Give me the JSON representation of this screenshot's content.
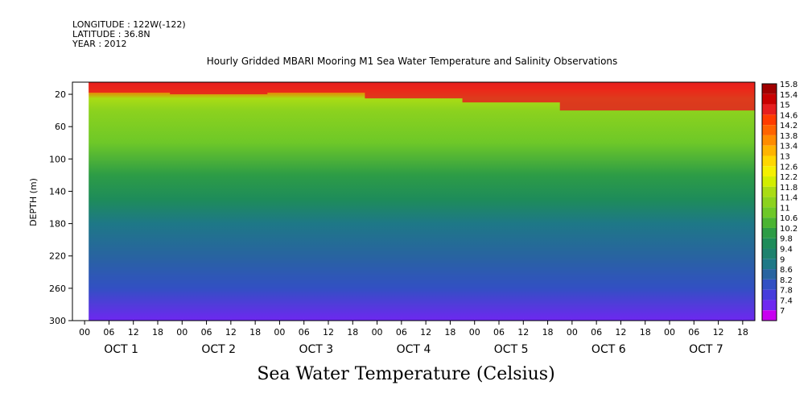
{
  "header": {
    "longitude": "LONGITUDE : 122W(-122)",
    "latitude": "LATITUDE : 36.8N",
    "year": "YEAR : 2012"
  },
  "chart_data": {
    "type": "heatmap",
    "title": "Hourly Gridded MBARI Mooring M1 Sea Water Temperature and Salinity Observations",
    "xlabel": "",
    "ylabel": "DEPTH (m)",
    "variable_title": "Sea Water Temperature (Celsius)",
    "x_hour_ticks": [
      "00",
      "06",
      "12",
      "18",
      "00",
      "06",
      "12",
      "18",
      "00",
      "06",
      "12",
      "18",
      "00",
      "06",
      "12",
      "18",
      "00",
      "06",
      "12",
      "18",
      "00",
      "06",
      "12",
      "18",
      "00",
      "06",
      "12",
      "18"
    ],
    "x_day_labels": [
      "OCT  1",
      "OCT  2",
      "OCT  3",
      "OCT  4",
      "OCT  5",
      "OCT  6",
      "OCT  7"
    ],
    "y_ticks": [
      20,
      60,
      100,
      140,
      180,
      220,
      260,
      300
    ],
    "ylim": [
      300,
      5
    ],
    "xlim_hours": [
      0,
      168
    ],
    "data_start_hour": 4,
    "colorbar_labels": [
      "15.8",
      "15.4",
      "15",
      "14.6",
      "14.2",
      "13.8",
      "13.4",
      "13",
      "12.6",
      "12.2",
      "11.8",
      "11.4",
      "11",
      "10.6",
      "10.2",
      "9.8",
      "9.4",
      "9",
      "8.6",
      "8.2",
      "7.8",
      "7.4",
      "7"
    ],
    "colorbar_colors": [
      "#a00000",
      "#c80000",
      "#e61e1e",
      "#ff3c00",
      "#ff6400",
      "#ff8c00",
      "#ffb400",
      "#ffd700",
      "#f5f000",
      "#d2ee00",
      "#aadc14",
      "#8cd21e",
      "#6ec828",
      "#4bb432",
      "#2d9c46",
      "#1e8c5a",
      "#1e826e",
      "#1e7887",
      "#2864a0",
      "#3250c3",
      "#463cdc",
      "#6e28f0",
      "#c800f0"
    ],
    "depth_profile": [
      {
        "depth": 5,
        "temp": 15.0
      },
      {
        "depth": 15,
        "temp": 14.0
      },
      {
        "depth": 25,
        "temp": 11.8
      },
      {
        "depth": 40,
        "temp": 11.4
      },
      {
        "depth": 80,
        "temp": 11.0
      },
      {
        "depth": 120,
        "temp": 10.4
      },
      {
        "depth": 150,
        "temp": 9.8
      },
      {
        "depth": 180,
        "temp": 9.0
      },
      {
        "depth": 220,
        "temp": 8.6
      },
      {
        "depth": 260,
        "temp": 8.2
      },
      {
        "depth": 300,
        "temp": 7.6
      }
    ],
    "mixed_layer_depth_by_day": [
      {
        "day": "OCT  1",
        "warm_layer_depth_m": 18
      },
      {
        "day": "OCT  2",
        "warm_layer_depth_m": 20
      },
      {
        "day": "OCT  3",
        "warm_layer_depth_m": 18
      },
      {
        "day": "OCT  4",
        "warm_layer_depth_m": 25
      },
      {
        "day": "OCT  5",
        "warm_layer_depth_m": 30
      },
      {
        "day": "OCT  6",
        "warm_layer_depth_m": 40
      },
      {
        "day": "OCT  7",
        "warm_layer_depth_m": 40
      }
    ]
  }
}
